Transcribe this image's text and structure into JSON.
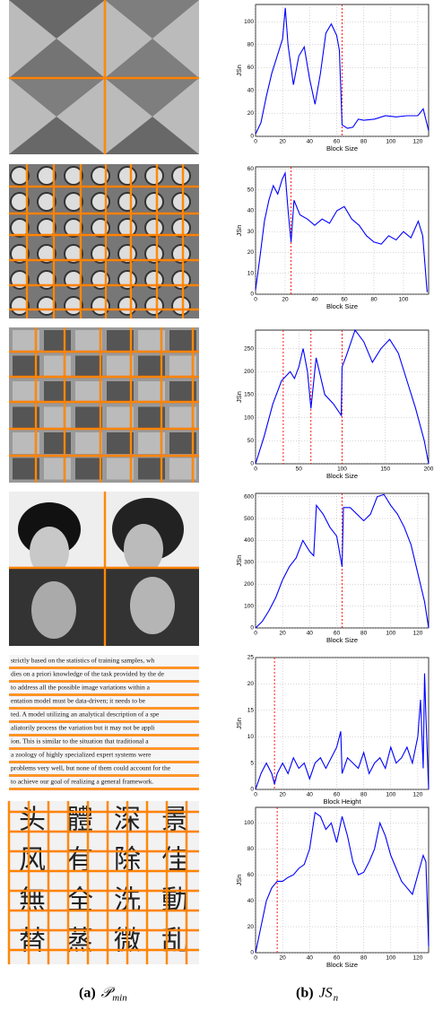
{
  "chart_data": [
    {
      "type": "line",
      "xlabel": "Block Size",
      "ylabel": "JSn",
      "color": "#0000ff",
      "vline_color": "#ff0000",
      "x": [
        0,
        4,
        8,
        12,
        16,
        20,
        22,
        24,
        28,
        32,
        36,
        40,
        44,
        48,
        52,
        56,
        60,
        62,
        64,
        68,
        72,
        76,
        80,
        88,
        96,
        104,
        112,
        120,
        124,
        128
      ],
      "values": [
        2,
        12,
        35,
        55,
        70,
        85,
        112,
        80,
        45,
        70,
        78,
        50,
        28,
        55,
        90,
        98,
        88,
        75,
        10,
        7,
        8,
        15,
        14,
        15,
        18,
        17,
        18,
        18,
        24,
        5
      ],
      "vlines": [
        64
      ],
      "xlim": [
        0,
        128
      ],
      "ylim": [
        0,
        115
      ],
      "xticks": [
        0,
        20,
        40,
        60,
        80,
        100,
        120
      ],
      "yticks": [
        0,
        20,
        40,
        60,
        80,
        100
      ]
    },
    {
      "type": "line",
      "xlabel": "Block Size",
      "ylabel": "JSn",
      "color": "#0000ff",
      "vline_color": "#ff0000",
      "x": [
        0,
        3,
        6,
        9,
        12,
        15,
        18,
        20,
        22,
        24,
        26,
        30,
        35,
        40,
        45,
        50,
        55,
        60,
        65,
        70,
        75,
        80,
        85,
        90,
        95,
        100,
        105,
        110,
        113,
        116
      ],
      "values": [
        2,
        18,
        35,
        45,
        52,
        48,
        55,
        58,
        40,
        25,
        45,
        38,
        36,
        33,
        36,
        34,
        40,
        42,
        36,
        33,
        28,
        25,
        24,
        28,
        26,
        30,
        27,
        35,
        28,
        1
      ],
      "vlines": [
        24
      ],
      "xlim": [
        0,
        117
      ],
      "ylim": [
        0,
        61
      ],
      "xticks": [
        0,
        20,
        40,
        60,
        80,
        100
      ],
      "yticks": [
        0,
        10,
        20,
        30,
        40,
        50,
        60
      ]
    },
    {
      "type": "line",
      "xlabel": "Block Size",
      "ylabel": "JSn",
      "color": "#0000ff",
      "vline_color": "#ff0000",
      "x": [
        0,
        10,
        20,
        30,
        35,
        40,
        45,
        50,
        55,
        60,
        64,
        70,
        80,
        90,
        99,
        100,
        105,
        115,
        125,
        135,
        145,
        155,
        165,
        175,
        185,
        195,
        200
      ],
      "values": [
        0,
        60,
        130,
        180,
        190,
        200,
        185,
        210,
        250,
        200,
        120,
        230,
        150,
        130,
        105,
        210,
        235,
        290,
        265,
        220,
        250,
        270,
        240,
        180,
        120,
        50,
        0
      ],
      "vlines": [
        32,
        64,
        100
      ],
      "xlim": [
        0,
        200
      ],
      "ylim": [
        0,
        290
      ],
      "xticks": [
        0,
        50,
        100,
        150,
        200
      ],
      "yticks": [
        0,
        50,
        100,
        150,
        200,
        250
      ]
    },
    {
      "type": "line",
      "xlabel": "Block Size",
      "ylabel": "JSn",
      "color": "#0000ff",
      "vline_color": "#ff0000",
      "x": [
        0,
        5,
        10,
        15,
        20,
        25,
        30,
        35,
        40,
        43,
        45,
        50,
        55,
        60,
        64,
        65,
        70,
        80,
        85,
        90,
        95,
        100,
        105,
        110,
        115,
        120,
        125,
        128
      ],
      "values": [
        0,
        30,
        80,
        140,
        220,
        280,
        320,
        400,
        350,
        330,
        560,
        520,
        460,
        420,
        280,
        550,
        550,
        490,
        520,
        600,
        610,
        560,
        520,
        460,
        380,
        250,
        120,
        0
      ],
      "vlines": [
        64
      ],
      "xlim": [
        0,
        128
      ],
      "ylim": [
        0,
        615
      ],
      "xticks": [
        0,
        20,
        40,
        60,
        80,
        100,
        120
      ],
      "yticks": [
        0,
        100,
        200,
        300,
        400,
        500,
        600
      ]
    },
    {
      "type": "line",
      "xlabel": "Block Height",
      "ylabel": "JSn",
      "color": "#0000ff",
      "vline_color": "#ff0000",
      "x": [
        0,
        4,
        8,
        12,
        14,
        16,
        20,
        24,
        28,
        32,
        36,
        40,
        44,
        48,
        52,
        56,
        60,
        63,
        64,
        68,
        72,
        76,
        80,
        84,
        88,
        92,
        96,
        100,
        104,
        108,
        112,
        116,
        120,
        122,
        124,
        125,
        126,
        128
      ],
      "values": [
        0,
        3,
        5,
        3,
        1,
        3,
        5,
        3,
        6,
        4,
        5,
        2,
        5,
        6,
        4,
        6,
        8,
        11,
        3,
        6,
        5,
        4,
        7,
        3,
        5,
        6,
        4,
        8,
        5,
        6,
        8,
        5,
        10,
        17,
        4,
        22,
        14,
        0
      ],
      "vlines": [
        14
      ],
      "xlim": [
        0,
        128
      ],
      "ylim": [
        0,
        25
      ],
      "xticks": [
        0,
        20,
        40,
        60,
        80,
        100,
        120
      ],
      "yticks": [
        0,
        5,
        10,
        15,
        20,
        25
      ]
    },
    {
      "type": "line",
      "xlabel": "Block Size",
      "ylabel": "JSn",
      "color": "#0000ff",
      "vline_color": "#ff0000",
      "x": [
        0,
        4,
        8,
        12,
        16,
        20,
        24,
        28,
        32,
        36,
        40,
        44,
        48,
        52,
        56,
        60,
        64,
        68,
        72,
        76,
        80,
        84,
        88,
        92,
        96,
        100,
        104,
        108,
        112,
        116,
        120,
        124,
        126,
        128
      ],
      "values": [
        0,
        20,
        40,
        50,
        55,
        55,
        58,
        60,
        65,
        68,
        80,
        108,
        105,
        95,
        100,
        85,
        105,
        90,
        70,
        60,
        62,
        70,
        80,
        100,
        90,
        75,
        65,
        55,
        50,
        45,
        60,
        75,
        70,
        5
      ],
      "vlines": [
        16
      ],
      "xlim": [
        0,
        128
      ],
      "ylim": [
        0,
        112
      ],
      "xticks": [
        0,
        20,
        40,
        60,
        80,
        100,
        120
      ],
      "yticks": [
        0,
        20,
        40,
        60,
        80,
        100
      ]
    }
  ],
  "text_image": {
    "lines": [
      "strictly based on the statistics of training samples, wh",
      "dies on a priori knowledge of the task provided by the de",
      "to address all the possible image variations within a",
      "entation model must be data-driven; it needs to be",
      "ted. A model utilizing an analytical description of a spe",
      "aliatorily process the variation but it may not be appli",
      "ion. This is similar to the situation that traditional a",
      "a zoology of highly specialized expert systems were",
      "problems very well, but none of them could account for the",
      "to achieve our goal of realizing a general framework."
    ]
  },
  "glyph_image": {
    "rows": [
      [
        "头",
        "體",
        "深",
        "景"
      ],
      [
        "风",
        "有",
        "除",
        "佳"
      ],
      [
        "無",
        "全",
        "洗",
        "動"
      ],
      [
        "替",
        "蒸",
        "微",
        "乱"
      ]
    ]
  },
  "captions": [
    {
      "label": "(a)",
      "symbol": "𝒫",
      "sub": "min"
    },
    {
      "label": "(b)",
      "symbol": "JS",
      "sub": "n"
    }
  ]
}
